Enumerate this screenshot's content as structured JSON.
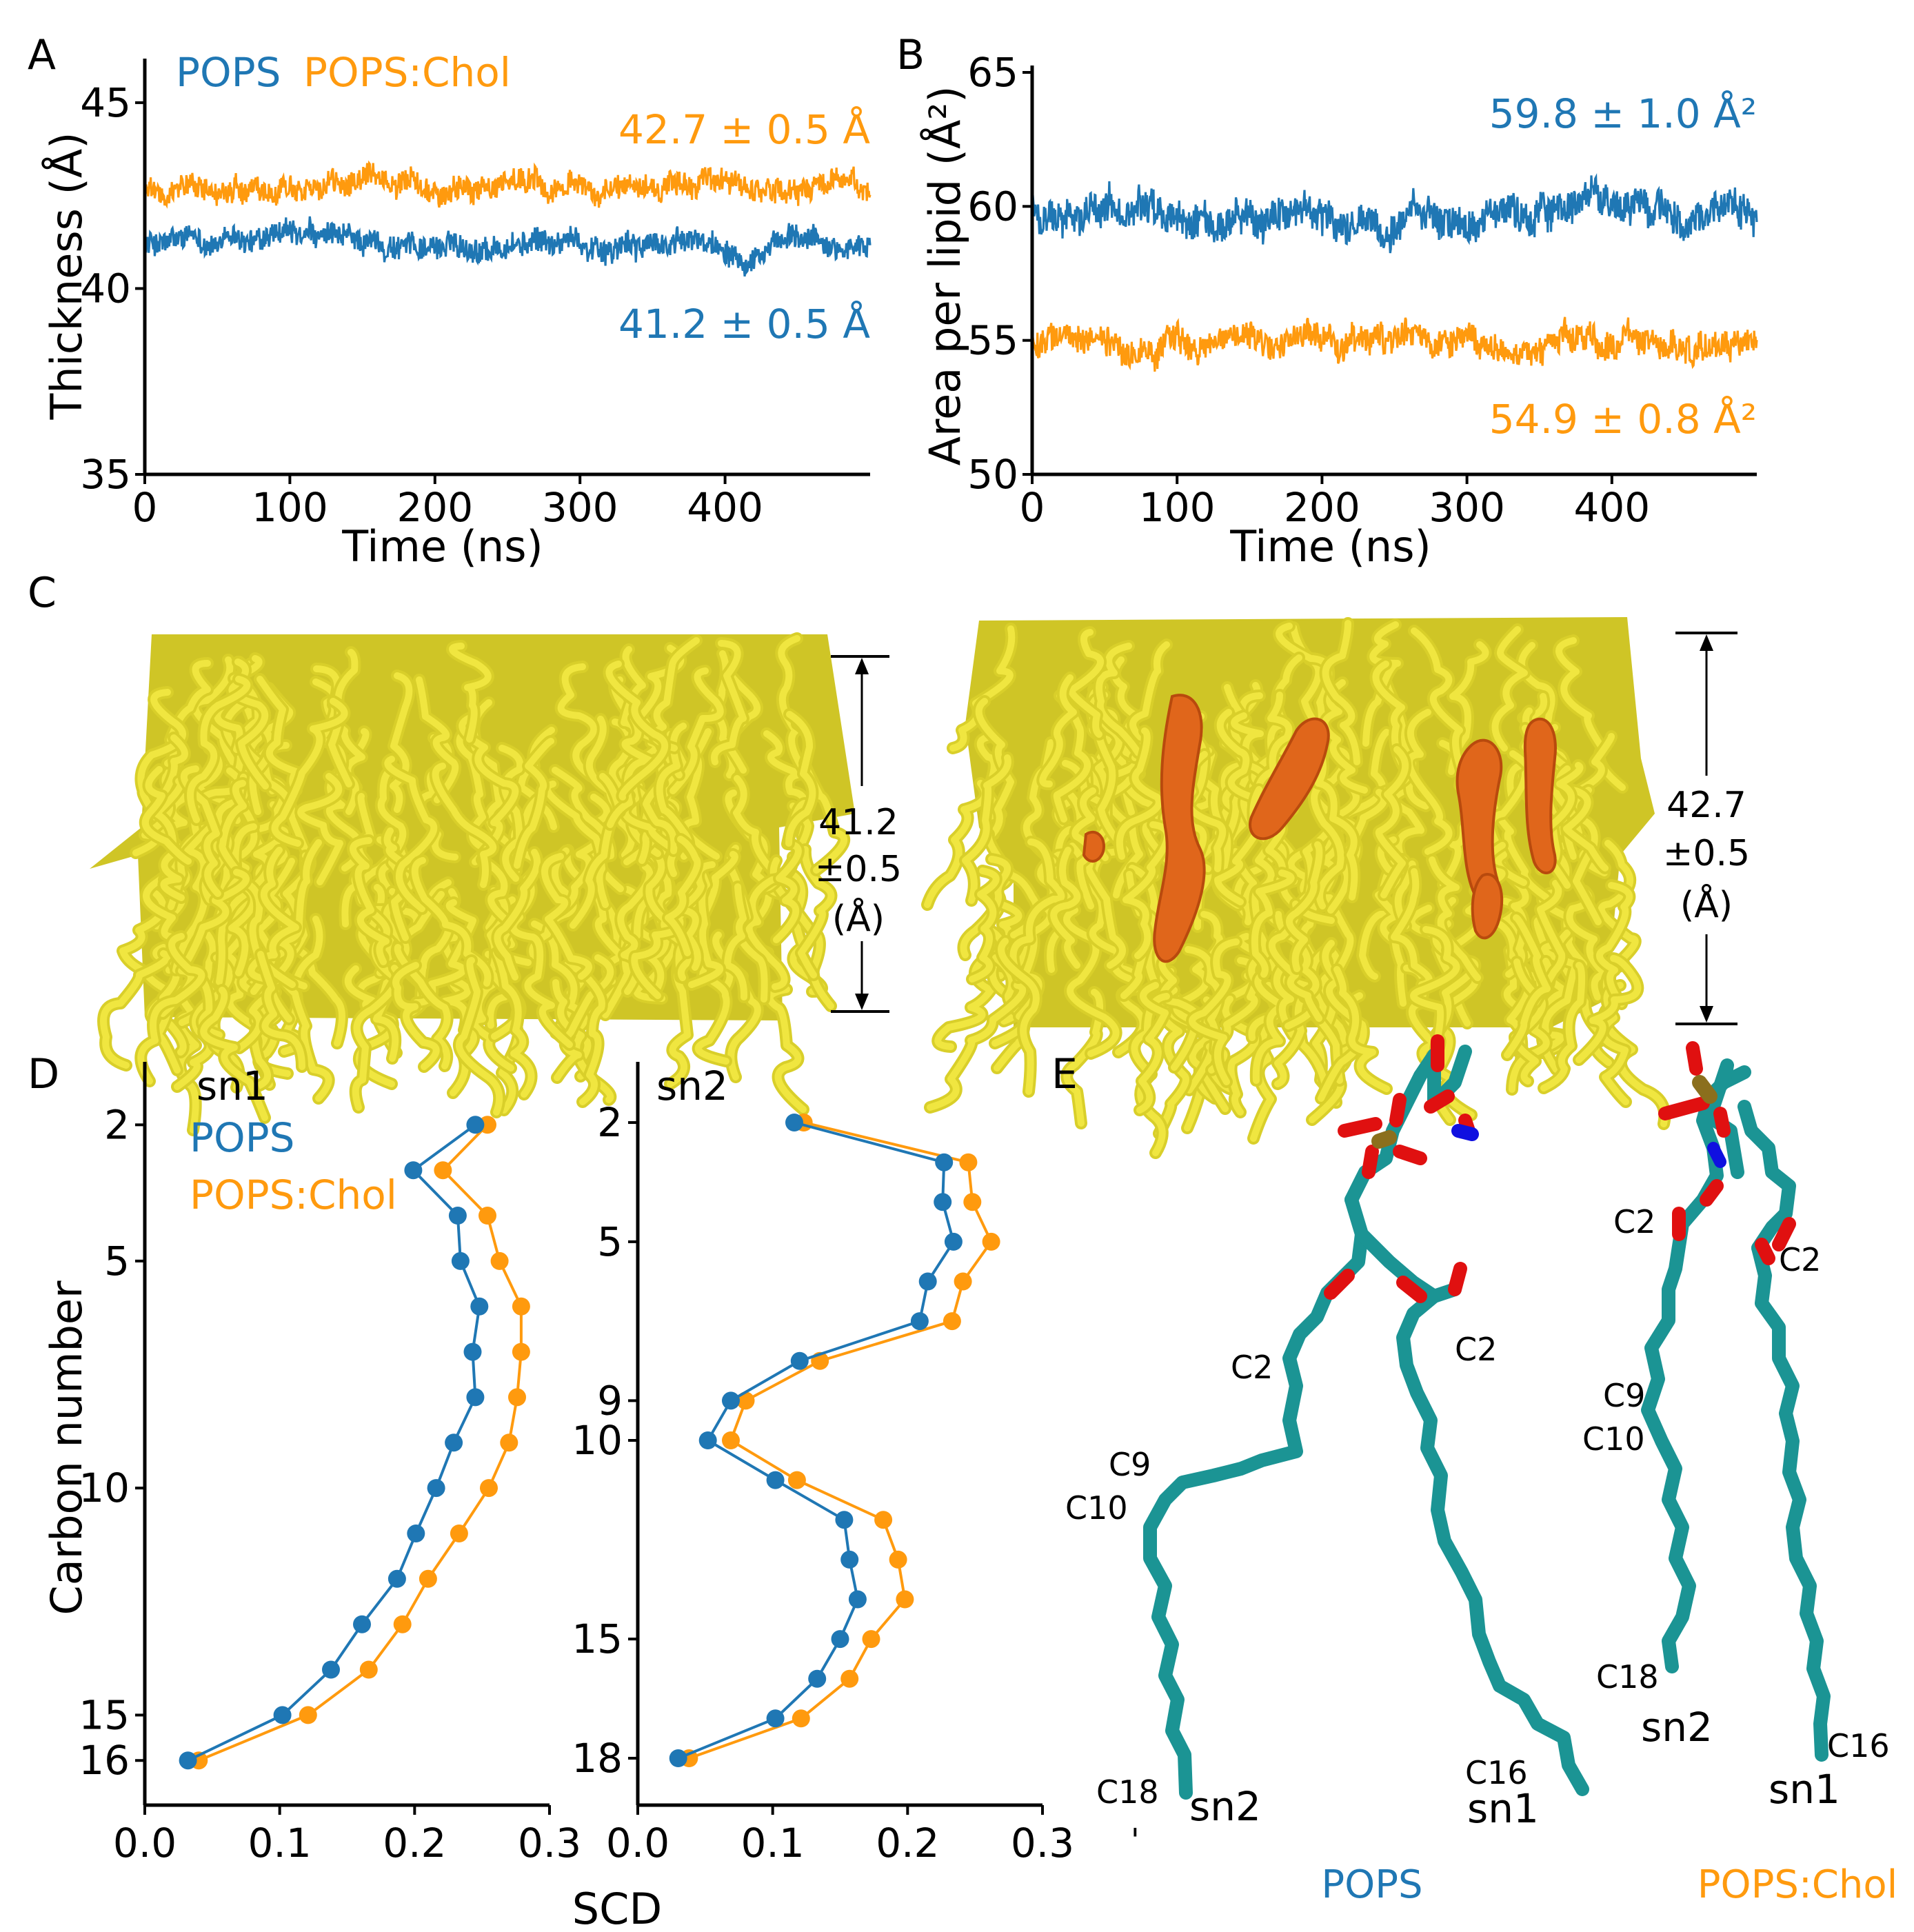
{
  "colors": {
    "pops": "#1f77b4",
    "chol": "#ff9a0e",
    "stick": "#1b9494",
    "oxygen": "#e01010",
    "nitrogen": "#1010e0",
    "phosphorus": "#8b6f1d",
    "lipid": "#e8de38",
    "cholesterol": "#e0661b"
  },
  "panels": {
    "A": "A",
    "B": "B",
    "C": "C",
    "D": "D",
    "E": "E"
  },
  "legend": {
    "pops": "POPS",
    "chol": "POPS:Chol"
  },
  "panel_c": {
    "dim_left": [
      "41.2",
      "±0.5",
      "(Å)"
    ],
    "dim_right": [
      "42.7",
      "±0.5",
      "(Å)"
    ]
  },
  "panel_e": {
    "caption_pops": "POPS",
    "caption_chol": "POPS:Chol",
    "labels_pops": {
      "c2_sn2": "C2",
      "c2_sn1": "C2",
      "c9": "C9",
      "c10": "C10",
      "c18": "C18",
      "c16": "C16",
      "sn2": "sn2",
      "sn1": "sn1"
    },
    "labels_chol": {
      "c2_sn2": "C2",
      "c2_sn1": "C2",
      "c9": "C9",
      "c10": "C10",
      "c18": "C18",
      "c16": "C16",
      "sn2": "sn2",
      "sn1": "sn1"
    },
    "footnote": "'"
  },
  "chart_data": [
    {
      "id": "A",
      "type": "line",
      "xlabel": "Time (ns)",
      "ylabel": "Thickness (Å)",
      "xlim": [
        0,
        500
      ],
      "ylim": [
        35,
        46
      ],
      "xticks": [
        0,
        100,
        200,
        300,
        400
      ],
      "yticks": [
        35,
        40,
        45
      ],
      "series": [
        {
          "name": "POPS",
          "mean": 41.2,
          "std": 0.5,
          "annotation": "41.2 ± 0.5 Å"
        },
        {
          "name": "POPS:Chol",
          "mean": 42.7,
          "std": 0.5,
          "annotation": "42.7 ± 0.5 Å"
        }
      ]
    },
    {
      "id": "B",
      "type": "line",
      "xlabel": "Time (ns)",
      "ylabel": "Area per lipid (Å²)",
      "xlim": [
        0,
        500
      ],
      "ylim": [
        50,
        65
      ],
      "xticks": [
        0,
        100,
        200,
        300,
        400
      ],
      "yticks": [
        50,
        55,
        60,
        65
      ],
      "series": [
        {
          "name": "POPS",
          "mean": 59.8,
          "std": 1.0,
          "annotation": "59.8 ± 1.0 Å²"
        },
        {
          "name": "POPS:Chol",
          "mean": 54.9,
          "std": 0.8,
          "annotation": "54.9 ± 0.8 Å²"
        }
      ]
    },
    {
      "id": "D-sn1",
      "type": "line",
      "title": "sn1",
      "xlabel": "SCD",
      "ylabel": "Carbon number",
      "xlim": [
        0,
        0.3
      ],
      "ylim": [
        16.3,
        1.6
      ],
      "xticks": [
        0.0,
        0.1,
        0.2,
        0.3
      ],
      "yticks": [
        2,
        5,
        10,
        15,
        16
      ],
      "carbons": [
        2,
        3,
        4,
        5,
        6,
        7,
        8,
        9,
        10,
        11,
        12,
        13,
        14,
        15,
        16
      ],
      "series": [
        {
          "name": "POPS",
          "values": [
            0.245,
            0.199,
            0.232,
            0.234,
            0.248,
            0.243,
            0.245,
            0.229,
            0.216,
            0.201,
            0.187,
            0.161,
            0.138,
            0.102,
            0.032
          ]
        },
        {
          "name": "POPS:Chol",
          "values": [
            0.254,
            0.221,
            0.254,
            0.263,
            0.279,
            0.279,
            0.276,
            0.27,
            0.255,
            0.233,
            0.21,
            0.191,
            0.166,
            0.121,
            0.04
          ]
        }
      ]
    },
    {
      "id": "D-sn2",
      "type": "line",
      "title": "sn2",
      "xlabel": "SCD",
      "ylabel": "",
      "xlim": [
        0,
        0.3
      ],
      "ylim": [
        18.4,
        1.6
      ],
      "xticks": [
        0.0,
        0.1,
        0.2,
        0.3
      ],
      "yticks": [
        2,
        5,
        9,
        10,
        15,
        18
      ],
      "carbons": [
        2,
        3,
        4,
        5,
        6,
        7,
        8,
        9,
        10,
        11,
        12,
        13,
        14,
        15,
        16,
        17,
        18
      ],
      "series": [
        {
          "name": "POPS",
          "values": [
            0.116,
            0.227,
            0.226,
            0.234,
            0.215,
            0.209,
            0.12,
            0.069,
            0.052,
            0.102,
            0.153,
            0.157,
            0.163,
            0.15,
            0.133,
            0.102,
            0.03
          ]
        },
        {
          "name": "POPS:Chol",
          "values": [
            0.123,
            0.245,
            0.248,
            0.262,
            0.241,
            0.233,
            0.135,
            0.08,
            0.069,
            0.118,
            0.182,
            0.193,
            0.198,
            0.173,
            0.157,
            0.121,
            0.038
          ]
        }
      ]
    }
  ]
}
